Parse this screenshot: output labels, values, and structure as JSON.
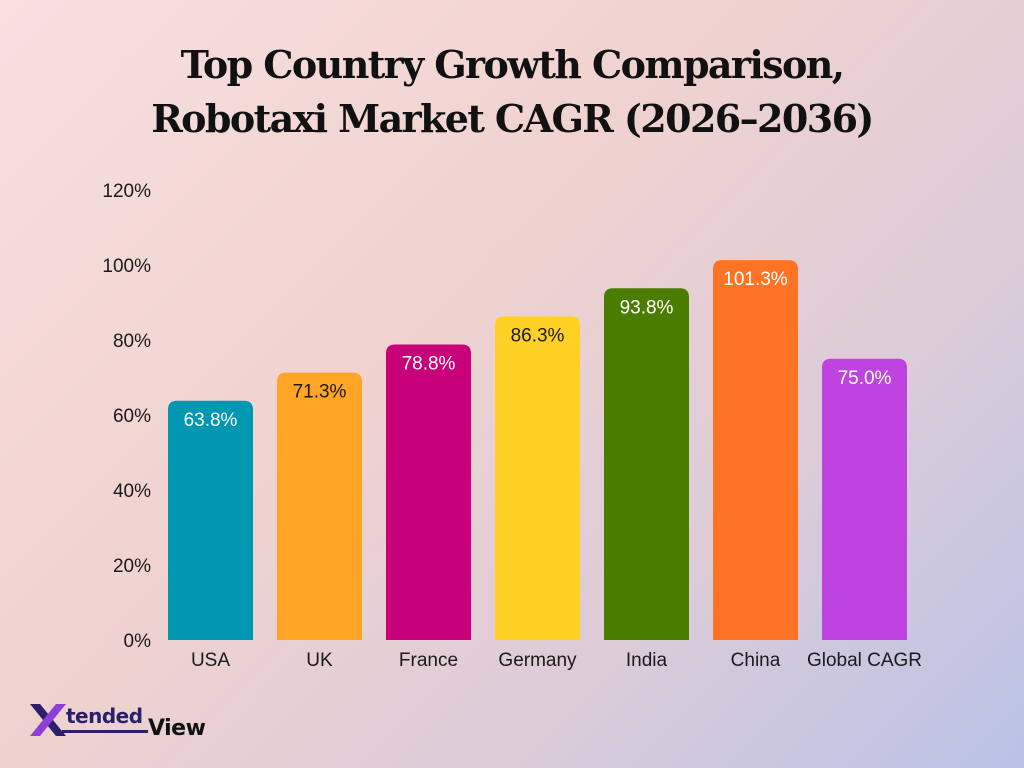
{
  "chart_data": {
    "type": "bar",
    "title": [
      "Top Country Growth Comparison,",
      "Robotaxi Market CAGR (2026–2036)"
    ],
    "xlabel": "",
    "ylabel": "",
    "ylim": [
      0,
      120
    ],
    "yticks": [
      "0%",
      "20%",
      "40%",
      "60%",
      "80%",
      "100%",
      "120%"
    ],
    "ytick_values": [
      0,
      20,
      40,
      60,
      80,
      100,
      120
    ],
    "grid": false,
    "categories": [
      "USA",
      "UK",
      "France",
      "Germany",
      "India",
      "China",
      "Global CAGR"
    ],
    "values": [
      63.8,
      71.3,
      78.8,
      86.3,
      93.8,
      101.3,
      75.0
    ],
    "value_labels": [
      "63.8%",
      "71.3%",
      "78.8%",
      "86.3%",
      "93.8%",
      "101.3%",
      "75.0%"
    ],
    "colors": [
      "#0097b2",
      "#ffa424",
      "#c8007a",
      "#ffd124",
      "#4a7c00",
      "#ff7424",
      "#bf43e0"
    ],
    "label_colors": [
      "#ffffff",
      "#1a1a1a",
      "#ffffff",
      "#1a1a1a",
      "#ffffff",
      "#ffffff",
      "#ffffff"
    ]
  },
  "logo": {
    "mark": "X",
    "part1": "tended",
    "part2": "View"
  }
}
